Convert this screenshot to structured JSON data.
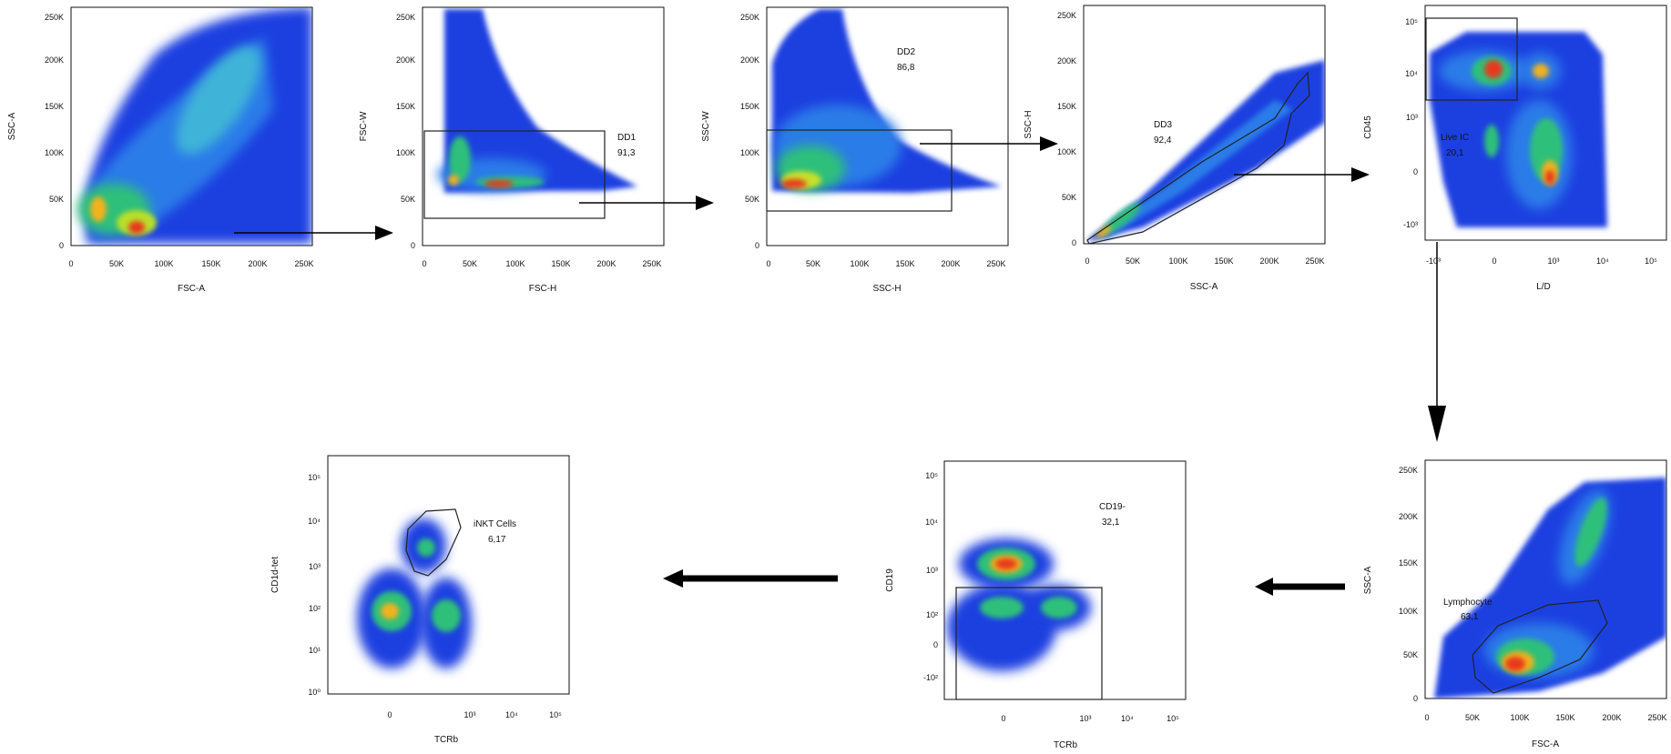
{
  "panels": [
    {
      "id": "p1",
      "xlabel": "FSC-A",
      "ylabel": "SSC-A",
      "xticks": [
        "0",
        "50K",
        "100K",
        "150K",
        "200K",
        "250K"
      ],
      "yticks": [
        "0",
        "50K",
        "100K",
        "150K",
        "200K",
        "250K"
      ],
      "gate": null
    },
    {
      "id": "p2",
      "xlabel": "FSC-H",
      "ylabel": "FSC-W",
      "xticks": [
        "0",
        "50K",
        "100K",
        "150K",
        "200K",
        "250K"
      ],
      "yticks": [
        "0",
        "50K",
        "100K",
        "150K",
        "200K",
        "250K"
      ],
      "gate": {
        "name": "DD1",
        "value": "91,3"
      }
    },
    {
      "id": "p3",
      "xlabel": "SSC-H",
      "ylabel": "SSC-W",
      "xticks": [
        "0",
        "50K",
        "100K",
        "150K",
        "200K",
        "250K"
      ],
      "yticks": [
        "0",
        "50K",
        "100K",
        "150K",
        "200K",
        "250K"
      ],
      "gate": {
        "name": "DD2",
        "value": "86,8"
      }
    },
    {
      "id": "p4",
      "xlabel": "SSC-A",
      "ylabel": "SSC-H",
      "xticks": [
        "0",
        "50K",
        "100K",
        "150K",
        "200K",
        "250K"
      ],
      "yticks": [
        "0",
        "50K",
        "100K",
        "150K",
        "200K",
        "250K"
      ],
      "gate": {
        "name": "DD3",
        "value": "92,4"
      }
    },
    {
      "id": "p5",
      "xlabel": "L/D",
      "ylabel": "CD45",
      "xticks": [
        "-10³",
        "0",
        "10³",
        "10⁴",
        "10⁵"
      ],
      "yticks": [
        "-10³",
        "0",
        "10³",
        "10⁴",
        "10⁵"
      ],
      "gate": {
        "name": "Live IC",
        "value": "20,1"
      }
    },
    {
      "id": "p6",
      "xlabel": "FSC-A",
      "ylabel": "SSC-A",
      "xticks": [
        "0",
        "50K",
        "100K",
        "150K",
        "200K",
        "250K"
      ],
      "yticks": [
        "0",
        "50K",
        "100K",
        "150K",
        "200K",
        "250K"
      ],
      "gate": {
        "name": "Lymphocyte",
        "value": "63,1"
      }
    },
    {
      "id": "p7",
      "xlabel": "TCRb",
      "ylabel": "CD19",
      "xticks": [
        "0",
        "10³",
        "10⁴",
        "10⁵"
      ],
      "yticks": [
        "-10²",
        "0",
        "10²",
        "10³",
        "10⁴",
        "10⁵"
      ],
      "gate": {
        "name": "CD19-",
        "value": "32,1"
      }
    },
    {
      "id": "p8",
      "xlabel": "TCRb",
      "ylabel": "CD1d-tet",
      "xticks": [
        "0",
        "10³",
        "10⁴",
        "10⁵"
      ],
      "yticks": [
        "10⁰",
        "10¹",
        "10²",
        "10³",
        "10⁴",
        "10⁵"
      ],
      "gate": {
        "name": "iNKT Cells",
        "value": "6,17"
      }
    }
  ]
}
